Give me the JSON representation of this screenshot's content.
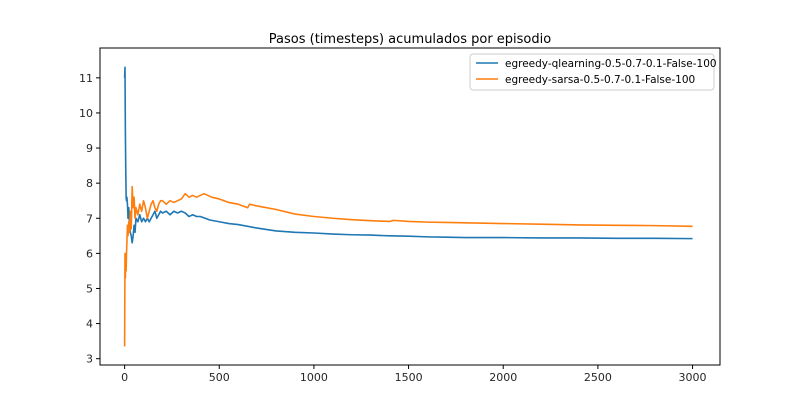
{
  "chart_data": {
    "type": "line",
    "title": "Pasos (timesteps) acumulados por episodio",
    "xlabel": "",
    "ylabel": "",
    "xlim": [
      -130,
      3145
    ],
    "ylim": [
      2.82,
      11.85
    ],
    "xticks": [
      0,
      500,
      1000,
      1500,
      2000,
      2500,
      3000
    ],
    "xtick_labels": [
      "0",
      "500",
      "1000",
      "1500",
      "2000",
      "2500",
      "3000"
    ],
    "yticks": [
      3,
      4,
      5,
      6,
      7,
      8,
      9,
      10,
      11
    ],
    "ytick_labels": [
      "3",
      "4",
      "5",
      "6",
      "7",
      "8",
      "9",
      "10",
      "11"
    ],
    "grid": false,
    "legend_position": "top-right",
    "series": [
      {
        "name": "egreedy-qlearning-0.5-0.7-0.1-False-100",
        "color": "#1f77b4",
        "x": [
          0,
          2,
          4,
          6,
          8,
          10,
          12,
          15,
          18,
          22,
          26,
          30,
          35,
          40,
          45,
          50,
          55,
          60,
          70,
          80,
          90,
          100,
          110,
          120,
          130,
          140,
          150,
          160,
          170,
          180,
          190,
          200,
          220,
          240,
          260,
          280,
          300,
          320,
          340,
          360,
          380,
          400,
          450,
          500,
          550,
          600,
          700,
          800,
          900,
          1000,
          1100,
          1200,
          1300,
          1400,
          1500,
          1600,
          1700,
          1800,
          1900,
          2000,
          2200,
          2400,
          2600,
          2800,
          3000
        ],
        "y": [
          11.0,
          11.3,
          9.5,
          8.4,
          7.6,
          7.5,
          7.6,
          7.4,
          7.0,
          7.3,
          6.8,
          6.6,
          6.5,
          6.3,
          6.5,
          6.8,
          6.6,
          7.0,
          6.9,
          7.1,
          6.9,
          7.0,
          6.9,
          7.0,
          6.9,
          7.0,
          7.1,
          7.2,
          7.0,
          7.1,
          7.2,
          7.15,
          7.2,
          7.1,
          7.2,
          7.15,
          7.2,
          7.15,
          7.05,
          7.1,
          7.05,
          7.05,
          6.95,
          6.9,
          6.85,
          6.82,
          6.72,
          6.64,
          6.6,
          6.58,
          6.55,
          6.53,
          6.52,
          6.5,
          6.49,
          6.47,
          6.46,
          6.45,
          6.45,
          6.45,
          6.44,
          6.44,
          6.43,
          6.43,
          6.42
        ]
      },
      {
        "name": "egreedy-sarsa-0.5-0.7-0.1-False-100",
        "color": "#ff7f0e",
        "x": [
          0,
          2,
          4,
          6,
          8,
          10,
          12,
          15,
          18,
          22,
          26,
          30,
          35,
          40,
          45,
          50,
          55,
          60,
          70,
          80,
          90,
          100,
          110,
          120,
          130,
          140,
          150,
          160,
          170,
          180,
          190,
          200,
          220,
          240,
          260,
          280,
          300,
          320,
          340,
          360,
          380,
          400,
          420,
          440,
          460,
          500,
          550,
          600,
          650,
          660,
          700,
          800,
          900,
          1000,
          1100,
          1200,
          1300,
          1400,
          1420,
          1500,
          1600,
          1700,
          1800,
          1900,
          2000,
          2200,
          2400,
          2600,
          2800,
          3000
        ],
        "y": [
          3.35,
          6.0,
          5.3,
          5.9,
          5.5,
          6.0,
          6.3,
          6.8,
          6.5,
          6.9,
          6.6,
          7.2,
          6.7,
          7.9,
          7.3,
          7.6,
          7.0,
          7.3,
          7.1,
          7.4,
          7.2,
          7.5,
          7.3,
          7.0,
          7.2,
          7.4,
          7.5,
          7.3,
          7.2,
          7.4,
          7.5,
          7.5,
          7.4,
          7.5,
          7.45,
          7.5,
          7.55,
          7.7,
          7.6,
          7.65,
          7.6,
          7.65,
          7.7,
          7.65,
          7.6,
          7.55,
          7.45,
          7.4,
          7.3,
          7.4,
          7.35,
          7.25,
          7.12,
          7.05,
          7.0,
          6.96,
          6.93,
          6.91,
          6.94,
          6.91,
          6.89,
          6.88,
          6.87,
          6.86,
          6.85,
          6.83,
          6.81,
          6.8,
          6.79,
          6.77
        ]
      }
    ]
  }
}
